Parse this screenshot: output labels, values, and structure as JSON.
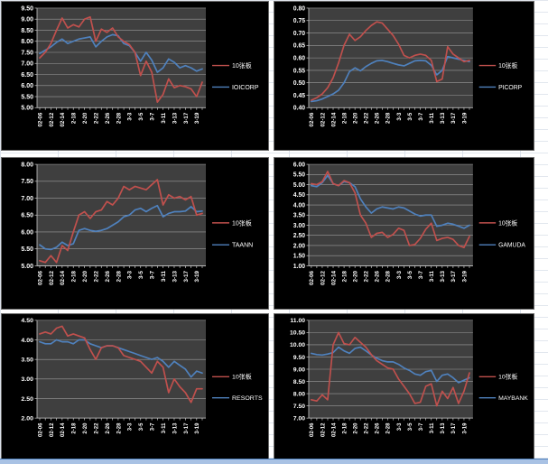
{
  "workbook": {
    "legend_red_label": "10张板",
    "colors": {
      "red_series": "#C0504D",
      "blue_series": "#4F81BD",
      "chart_bg": "#000000",
      "plot_bg": "#3F3F3F",
      "gridline": "#9C9C9C",
      "axis": "#C8C8C8",
      "label_text": "#FFFFFF",
      "sheet_grid": "#DDE3EC",
      "bottom_bar": "#A9C2E4"
    }
  },
  "x_labels_shared": [
    "02-06",
    "02-12",
    "02-14",
    "2-18",
    "2-20",
    "2-22",
    "2-26",
    "2-28",
    "3-3",
    "3-5",
    "3-7",
    "3-11",
    "3-13",
    "3-17",
    "3-19"
  ],
  "chart_data": [
    {
      "type": "line",
      "title": "",
      "stock": "IOICORP",
      "ylim": [
        5.0,
        9.5
      ],
      "ytick_step": 0.5,
      "legend_position": "right",
      "grid": true,
      "x_labels": [
        "02-06",
        "02-12",
        "02-14",
        "2-18",
        "2-20",
        "2-22",
        "2-26",
        "2-28",
        "3-3",
        "3-5",
        "3-7",
        "3-11",
        "3-13",
        "3-17",
        "3-19"
      ],
      "series": [
        {
          "name": "10张板",
          "color": "#C0504D",
          "values": [
            7.25,
            7.5,
            7.9,
            8.5,
            9.05,
            8.6,
            8.75,
            8.65,
            9.0,
            9.1,
            8.0,
            8.55,
            8.4,
            8.6,
            8.2,
            8.0,
            7.85,
            7.5,
            6.45,
            7.1,
            6.6,
            5.25,
            5.6,
            6.3,
            5.9,
            6.0,
            5.95,
            5.85,
            5.5,
            6.15
          ]
        },
        {
          "name": "IOICORP",
          "color": "#4F81BD",
          "values": [
            7.45,
            7.6,
            7.75,
            7.95,
            8.1,
            7.9,
            8.0,
            8.1,
            8.15,
            8.2,
            7.75,
            8.0,
            8.2,
            8.3,
            8.25,
            7.9,
            7.8,
            7.5,
            7.1,
            7.5,
            7.15,
            6.6,
            6.8,
            7.2,
            7.05,
            6.8,
            6.9,
            6.8,
            6.65,
            6.75
          ]
        }
      ]
    },
    {
      "type": "line",
      "title": "",
      "stock": "PICORP",
      "ylim": [
        0.4,
        0.8
      ],
      "ytick_step": 0.05,
      "legend_position": "right",
      "grid": true,
      "x_labels": [
        "02-06",
        "02-12",
        "02-14",
        "2-18",
        "2-20",
        "2-22",
        "2-26",
        "2-28",
        "3-3",
        "3-5",
        "3-7",
        "3-11",
        "3-13",
        "3-17",
        "3-19"
      ],
      "series": [
        {
          "name": "10张板",
          "color": "#C0504D",
          "values": [
            0.43,
            0.44,
            0.455,
            0.48,
            0.52,
            0.58,
            0.65,
            0.695,
            0.67,
            0.685,
            0.71,
            0.73,
            0.745,
            0.74,
            0.715,
            0.69,
            0.655,
            0.61,
            0.6,
            0.61,
            0.615,
            0.61,
            0.59,
            0.505,
            0.515,
            0.645,
            0.615,
            0.6,
            0.585,
            0.59
          ]
        },
        {
          "name": "PICORP",
          "color": "#4F81BD",
          "values": [
            0.425,
            0.428,
            0.435,
            0.445,
            0.455,
            0.47,
            0.5,
            0.545,
            0.56,
            0.548,
            0.565,
            0.578,
            0.588,
            0.59,
            0.585,
            0.578,
            0.572,
            0.568,
            0.578,
            0.588,
            0.59,
            0.588,
            0.57,
            0.532,
            0.55,
            0.605,
            0.6,
            0.595,
            0.59,
            0.585
          ]
        }
      ]
    },
    {
      "type": "line",
      "title": "",
      "stock": "TAANN",
      "ylim": [
        5.0,
        8.0
      ],
      "ytick_step": 0.5,
      "legend_position": "right",
      "grid": true,
      "x_labels": [
        "02-06",
        "02-12",
        "02-14",
        "2-18",
        "2-20",
        "2-22",
        "2-26",
        "2-28",
        "3-3",
        "3-5",
        "3-7",
        "3-11",
        "3-13",
        "3-17",
        "3-19"
      ],
      "series": [
        {
          "name": "10张板",
          "color": "#C0504D",
          "values": [
            5.15,
            5.1,
            5.3,
            5.1,
            5.6,
            5.45,
            6.0,
            6.5,
            6.6,
            6.4,
            6.6,
            6.65,
            6.9,
            6.8,
            7.0,
            7.35,
            7.25,
            7.35,
            7.3,
            7.25,
            7.4,
            7.55,
            6.8,
            7.1,
            7.0,
            7.05,
            6.95,
            7.05,
            6.5,
            6.55
          ]
        },
        {
          "name": "TAANN",
          "color": "#4F81BD",
          "values": [
            5.62,
            5.5,
            5.48,
            5.55,
            5.7,
            5.6,
            5.65,
            6.05,
            6.1,
            6.05,
            6.02,
            6.05,
            6.1,
            6.2,
            6.3,
            6.45,
            6.5,
            6.65,
            6.7,
            6.6,
            6.7,
            6.78,
            6.45,
            6.55,
            6.6,
            6.6,
            6.62,
            6.75,
            6.6,
            6.62
          ]
        }
      ]
    },
    {
      "type": "line",
      "title": "",
      "stock": "GAMUDA",
      "ylim": [
        1.0,
        6.0
      ],
      "ytick_step": 0.5,
      "legend_position": "right",
      "grid": true,
      "x_labels": [
        "02-06",
        "02-12",
        "02-14",
        "2-18",
        "2-20",
        "2-22",
        "2-26",
        "2-28",
        "3-3",
        "3-5",
        "3-7",
        "3-11",
        "3-13",
        "3-17",
        "3-19"
      ],
      "series": [
        {
          "name": "10张板",
          "color": "#C0504D",
          "values": [
            5.05,
            5.0,
            5.15,
            5.65,
            5.05,
            4.95,
            5.2,
            5.1,
            4.6,
            3.5,
            3.1,
            2.4,
            2.6,
            2.65,
            2.4,
            2.55,
            2.85,
            2.75,
            2.0,
            2.05,
            2.35,
            2.8,
            3.1,
            2.25,
            2.35,
            2.4,
            2.3,
            2.0,
            1.9,
            2.45
          ]
        },
        {
          "name": "GAMUDA",
          "color": "#4F81BD",
          "values": [
            4.95,
            4.9,
            5.1,
            5.45,
            5.05,
            4.95,
            5.15,
            5.1,
            4.9,
            4.3,
            3.9,
            3.6,
            3.8,
            3.9,
            3.85,
            3.8,
            3.9,
            3.85,
            3.7,
            3.55,
            3.45,
            3.5,
            3.5,
            2.95,
            3.0,
            3.1,
            3.05,
            2.95,
            2.85,
            3.0
          ]
        }
      ]
    },
    {
      "type": "line",
      "title": "",
      "stock": "RESORTS",
      "ylim": [
        2.0,
        4.5
      ],
      "ytick_step": 0.5,
      "legend_position": "right",
      "grid": true,
      "x_labels": [
        "02-06",
        "02-12",
        "02-14",
        "2-18",
        "2-20",
        "2-22",
        "2-26",
        "2-28",
        "3-3",
        "3-5",
        "3-7",
        "3-11",
        "3-13",
        "3-17",
        "3-19"
      ],
      "series": [
        {
          "name": "10张板",
          "color": "#C0504D",
          "values": [
            4.15,
            4.2,
            4.15,
            4.3,
            4.35,
            4.1,
            4.15,
            4.1,
            4.05,
            3.75,
            3.5,
            3.8,
            3.85,
            3.85,
            3.8,
            3.6,
            3.55,
            3.5,
            3.45,
            3.3,
            3.15,
            3.45,
            3.3,
            2.65,
            3.0,
            2.8,
            2.65,
            2.4,
            2.75,
            2.75
          ]
        },
        {
          "name": "RESORTS",
          "color": "#4F81BD",
          "values": [
            3.95,
            3.9,
            3.9,
            4.0,
            3.95,
            3.95,
            3.9,
            4.0,
            4.0,
            3.9,
            3.85,
            3.8,
            3.85,
            3.85,
            3.8,
            3.75,
            3.7,
            3.65,
            3.6,
            3.55,
            3.5,
            3.55,
            3.45,
            3.3,
            3.45,
            3.35,
            3.25,
            3.05,
            3.2,
            3.15
          ]
        }
      ]
    },
    {
      "type": "line",
      "title": "",
      "stock": "MAYBANK",
      "ylim": [
        7.0,
        11.0
      ],
      "ytick_step": 0.5,
      "legend_position": "right",
      "grid": true,
      "x_labels": [
        "02-06",
        "02-12",
        "02-14",
        "2-18",
        "2-20",
        "2-22",
        "2-26",
        "2-28",
        "3-3",
        "3-5",
        "3-7",
        "3-11",
        "3-13",
        "3-17",
        "3-19"
      ],
      "series": [
        {
          "name": "10张板",
          "color": "#C0504D",
          "values": [
            7.75,
            7.7,
            7.95,
            7.75,
            10.0,
            10.5,
            10.05,
            10.0,
            10.3,
            10.1,
            9.9,
            9.6,
            9.35,
            9.2,
            9.05,
            9.0,
            8.6,
            8.3,
            8.0,
            7.6,
            7.65,
            8.3,
            8.4,
            7.5,
            8.1,
            7.8,
            8.25,
            7.6,
            8.1,
            8.85
          ]
        },
        {
          "name": "MAYBANK",
          "color": "#4F81BD",
          "values": [
            9.65,
            9.6,
            9.58,
            9.62,
            9.68,
            9.9,
            9.75,
            9.65,
            9.85,
            9.9,
            9.75,
            9.58,
            9.45,
            9.35,
            9.3,
            9.3,
            9.2,
            9.05,
            8.95,
            8.8,
            8.75,
            8.9,
            8.95,
            8.5,
            8.75,
            8.8,
            8.65,
            8.45,
            8.55,
            8.65
          ]
        }
      ]
    }
  ]
}
